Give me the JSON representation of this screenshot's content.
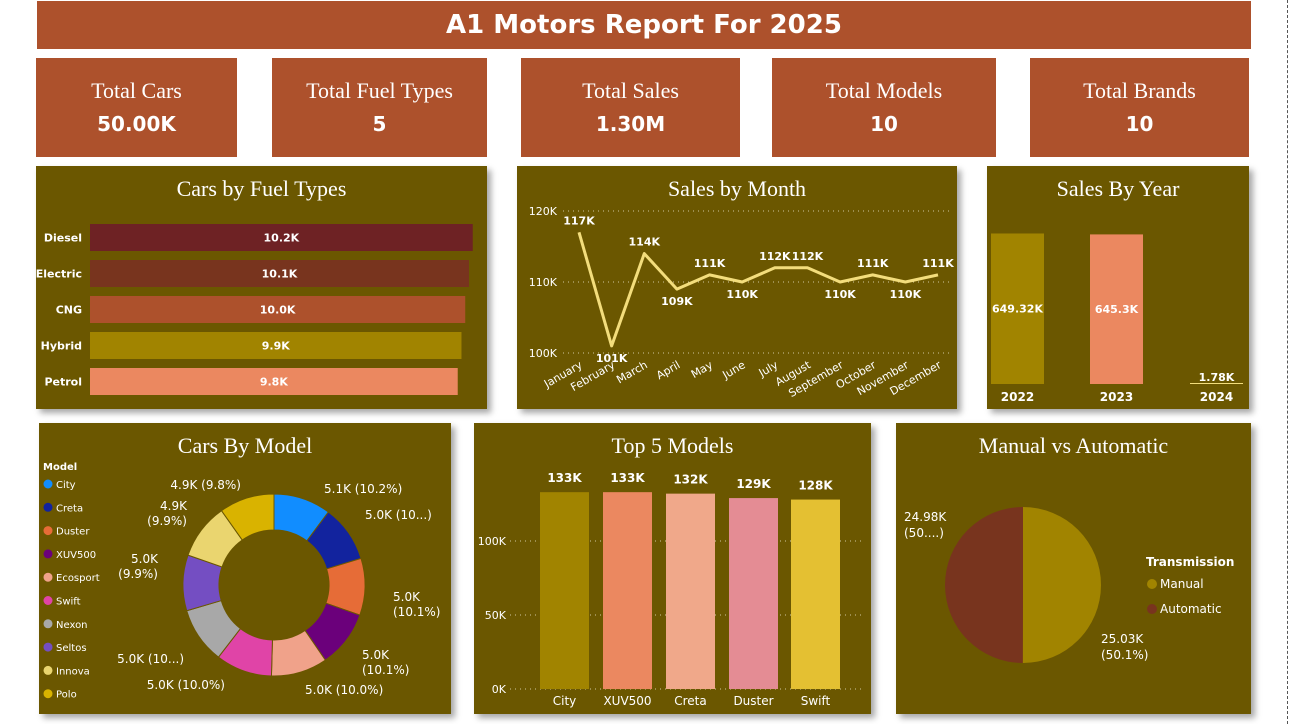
{
  "title": "A1 Motors Report For 2025",
  "kpis": [
    {
      "label": "Total Cars",
      "value": "50.00K"
    },
    {
      "label": "Total Fuel Types",
      "value": "5"
    },
    {
      "label": "Total Sales",
      "value": "1.30M"
    },
    {
      "label": "Total Models",
      "value": "10"
    },
    {
      "label": "Total Brands",
      "value": "10"
    }
  ],
  "panel_titles": {
    "fuel": "Cars by Fuel Types",
    "month": "Sales by Month",
    "year": "Sales By Year",
    "model": "Cars By Model",
    "top5": "Top 5 Models",
    "trans": "Manual vs Automatic"
  },
  "colors": {
    "title_bg": "#ad512c",
    "panel_bg": "#6b5700"
  },
  "chart_data": [
    {
      "id": "fuel",
      "type": "bar",
      "orientation": "horizontal",
      "title": "Cars by Fuel Types",
      "categories": [
        "Diesel",
        "Electric",
        "CNG",
        "Hybrid",
        "Petrol"
      ],
      "values": [
        10.2,
        10.1,
        10.0,
        9.9,
        9.8
      ],
      "labels": [
        "10.2K",
        "10.1K",
        "10.0K",
        "9.9K",
        "9.8K"
      ],
      "colors": [
        "#6e2224",
        "#78341e",
        "#ad512c",
        "#a18400",
        "#eb8860"
      ]
    },
    {
      "id": "month",
      "type": "line",
      "title": "Sales by Month",
      "categories": [
        "January",
        "February",
        "March",
        "April",
        "May",
        "June",
        "July",
        "August",
        "September",
        "October",
        "November",
        "December"
      ],
      "values": [
        117,
        101,
        114,
        109,
        111,
        110,
        112,
        112,
        110,
        111,
        110,
        111
      ],
      "labels": [
        "117K",
        "101K",
        "114K",
        "109K",
        "111K",
        "110K",
        "112K",
        "112K",
        "110K",
        "111K",
        "110K",
        "111K"
      ],
      "yticks": [
        "100K",
        "110K",
        "120K"
      ],
      "ylim": [
        100,
        120
      ],
      "color": "#f3dd7c"
    },
    {
      "id": "year",
      "type": "bar",
      "title": "Sales By Year",
      "categories": [
        "2022",
        "2023",
        "2024"
      ],
      "values": [
        649.32,
        645.3,
        1.78
      ],
      "labels": [
        "649.32K",
        "645.3K",
        "1.78K"
      ],
      "colors": [
        "#a18400",
        "#eb8860",
        "#f3dd7c"
      ]
    },
    {
      "id": "model",
      "type": "pie",
      "donut": true,
      "title": "Cars By Model",
      "legend_title": "Model",
      "categories": [
        "City",
        "Creta",
        "Duster",
        "XUV500",
        "Ecosport",
        "Swift",
        "Nexon",
        "Seltos",
        "Innova",
        "Polo"
      ],
      "values": [
        10.2,
        10.1,
        10.1,
        10.1,
        10.0,
        10.0,
        10.0,
        9.9,
        9.9,
        9.8
      ],
      "labels": [
        "5.1K (10.2%)",
        "5.0K (10...)",
        "5.0K (10.1%)",
        "5.0K (10.1%)",
        "5.0K (10.0%)",
        "5.0K (10.0%)",
        "5.0K (10...)",
        "5.0K (9.9%)",
        "4.9K (9.9%)",
        "4.9K (9.8%)"
      ],
      "colors": [
        "#118dff",
        "#12239e",
        "#e66c37",
        "#6b007b",
        "#f0a28a",
        "#e044a7",
        "#a8a8a8",
        "#744ec2",
        "#ead56f",
        "#d9b300"
      ]
    },
    {
      "id": "top5",
      "type": "bar",
      "title": "Top 5 Models",
      "categories": [
        "City",
        "XUV500",
        "Creta",
        "Duster",
        "Swift"
      ],
      "values": [
        133,
        133,
        132,
        129,
        128
      ],
      "labels": [
        "133K",
        "133K",
        "132K",
        "129K",
        "128K"
      ],
      "yticks": [
        "0K",
        "50K",
        "100K"
      ],
      "ylim": [
        0,
        150
      ],
      "colors": [
        "#a18400",
        "#eb8860",
        "#f0a88a",
        "#e48c94",
        "#e4c032"
      ]
    },
    {
      "id": "trans",
      "type": "pie",
      "title": "Manual vs Automatic",
      "legend_title": "Transmission",
      "categories": [
        "Manual",
        "Automatic"
      ],
      "values": [
        25.03,
        24.98
      ],
      "labels": [
        "25.03K (50.1%)",
        "24.98K (50....)"
      ],
      "colors": [
        "#a18400",
        "#78341e"
      ]
    }
  ]
}
